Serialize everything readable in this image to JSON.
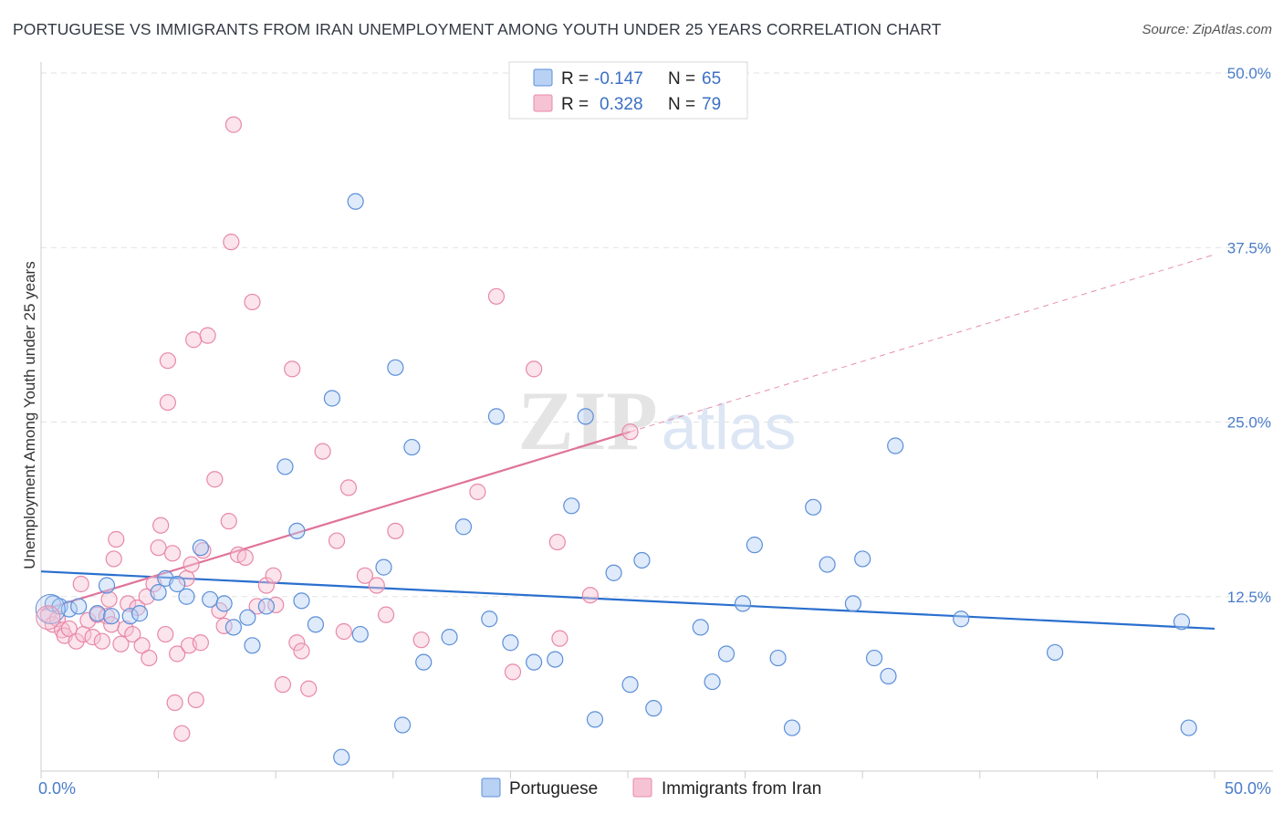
{
  "title": "PORTUGUESE VS IMMIGRANTS FROM IRAN UNEMPLOYMENT AMONG YOUTH UNDER 25 YEARS CORRELATION CHART",
  "source": "Source: ZipAtlas.com",
  "colors": {
    "blue": "#5b8fd9",
    "blue_fill": "#b9d1f3",
    "blue_line": "#2a6fce",
    "pink": "#e888a8",
    "pink_fill": "#f6c3d4",
    "pink_line": "#e0739a",
    "grid": "#e2e2e2",
    "tick_text": "#4a7cc9"
  },
  "chart_data": {
    "type": "scatter",
    "title": "PORTUGUESE VS IMMIGRANTS FROM IRAN UNEMPLOYMENT AMONG YOUTH UNDER 25 YEARS CORRELATION CHART",
    "xlabel": "",
    "ylabel": "Unemployment Among Youth under 25 years",
    "xlim": [
      0,
      50
    ],
    "ylim": [
      0,
      50
    ],
    "x_tick_labels": [
      "0.0%",
      "50.0%"
    ],
    "y_ticks": [
      12.5,
      25.0,
      37.5,
      50.0
    ],
    "y_tick_labels": [
      "12.5%",
      "25.0%",
      "37.5%",
      "50.0%"
    ],
    "watermark": "ZIPatlas",
    "legend": [
      {
        "series": "Portuguese",
        "r_label": "R =",
        "r": "-0.147",
        "n_label": "N =",
        "n": "65"
      },
      {
        "series": "Immigrants from Iran",
        "r_label": "R =",
        "r": "0.328",
        "n_label": "N =",
        "n": "79"
      }
    ],
    "series": [
      {
        "name": "Portuguese",
        "trend": {
          "x": [
            0,
            50
          ],
          "y": [
            14.3,
            10.2
          ],
          "solid_until": 50
        },
        "points": [
          [
            0.5,
            12.0
          ],
          [
            0.8,
            11.8
          ],
          [
            1.2,
            11.6
          ],
          [
            1.6,
            11.8
          ],
          [
            2.4,
            11.3
          ],
          [
            3.0,
            11.1
          ],
          [
            2.8,
            13.3
          ],
          [
            3.8,
            11.1
          ],
          [
            4.2,
            11.3
          ],
          [
            5.0,
            12.8
          ],
          [
            5.3,
            13.8
          ],
          [
            5.8,
            13.4
          ],
          [
            6.2,
            12.5
          ],
          [
            6.8,
            16.0
          ],
          [
            7.2,
            12.3
          ],
          [
            7.8,
            12.0
          ],
          [
            8.2,
            10.3
          ],
          [
            8.8,
            11.0
          ],
          [
            9.0,
            9.0
          ],
          [
            9.6,
            11.8
          ],
          [
            10.4,
            21.8
          ],
          [
            10.9,
            17.2
          ],
          [
            11.1,
            12.2
          ],
          [
            11.7,
            10.5
          ],
          [
            12.4,
            26.7
          ],
          [
            12.8,
            1.0
          ],
          [
            13.4,
            40.8
          ],
          [
            13.6,
            9.8
          ],
          [
            14.6,
            14.6
          ],
          [
            15.1,
            28.9
          ],
          [
            15.4,
            3.3
          ],
          [
            15.8,
            23.2
          ],
          [
            16.3,
            7.8
          ],
          [
            17.4,
            9.6
          ],
          [
            18.0,
            17.5
          ],
          [
            19.1,
            10.9
          ],
          [
            19.4,
            25.4
          ],
          [
            20.0,
            9.2
          ],
          [
            21.0,
            7.8
          ],
          [
            21.9,
            8.0
          ],
          [
            22.6,
            19.0
          ],
          [
            23.2,
            25.4
          ],
          [
            23.6,
            3.7
          ],
          [
            24.4,
            14.2
          ],
          [
            25.1,
            6.2
          ],
          [
            25.6,
            15.1
          ],
          [
            26.1,
            4.5
          ],
          [
            28.1,
            10.3
          ],
          [
            28.6,
            6.4
          ],
          [
            29.2,
            8.4
          ],
          [
            29.9,
            12.0
          ],
          [
            30.4,
            16.2
          ],
          [
            31.4,
            8.1
          ],
          [
            32.0,
            3.1
          ],
          [
            32.9,
            18.9
          ],
          [
            33.5,
            14.8
          ],
          [
            34.6,
            12.0
          ],
          [
            35.0,
            15.2
          ],
          [
            35.5,
            8.1
          ],
          [
            36.1,
            6.8
          ],
          [
            36.4,
            23.3
          ],
          [
            39.2,
            10.9
          ],
          [
            43.2,
            8.5
          ],
          [
            48.6,
            10.7
          ],
          [
            48.9,
            3.1
          ]
        ]
      },
      {
        "name": "Immigrants from Iran",
        "trend": {
          "x": [
            0,
            50
          ],
          "y": [
            11.5,
            37.0
          ],
          "solid_until": 25.1
        },
        "points": [
          [
            0.3,
            11.2
          ],
          [
            0.5,
            10.5
          ],
          [
            0.7,
            10.9
          ],
          [
            0.9,
            10.1
          ],
          [
            1.0,
            9.7
          ],
          [
            1.2,
            10.2
          ],
          [
            1.5,
            9.3
          ],
          [
            1.7,
            13.4
          ],
          [
            1.8,
            9.8
          ],
          [
            2.0,
            10.8
          ],
          [
            2.2,
            9.6
          ],
          [
            2.4,
            11.2
          ],
          [
            2.6,
            9.3
          ],
          [
            2.8,
            11.1
          ],
          [
            2.9,
            12.3
          ],
          [
            3.0,
            10.5
          ],
          [
            3.1,
            15.2
          ],
          [
            3.2,
            16.6
          ],
          [
            3.4,
            9.1
          ],
          [
            3.6,
            10.2
          ],
          [
            3.7,
            12.0
          ],
          [
            3.9,
            9.8
          ],
          [
            4.1,
            11.7
          ],
          [
            4.3,
            9.0
          ],
          [
            4.5,
            12.5
          ],
          [
            4.6,
            8.1
          ],
          [
            4.8,
            13.4
          ],
          [
            5.0,
            16.0
          ],
          [
            5.1,
            17.6
          ],
          [
            5.3,
            9.8
          ],
          [
            5.4,
            29.4
          ],
          [
            5.4,
            26.4
          ],
          [
            5.6,
            15.6
          ],
          [
            5.7,
            4.9
          ],
          [
            5.8,
            8.4
          ],
          [
            6.0,
            2.7
          ],
          [
            6.2,
            13.8
          ],
          [
            6.3,
            9.0
          ],
          [
            6.4,
            14.8
          ],
          [
            6.5,
            30.9
          ],
          [
            6.6,
            5.1
          ],
          [
            6.8,
            9.2
          ],
          [
            6.9,
            15.8
          ],
          [
            7.1,
            31.2
          ],
          [
            7.4,
            20.9
          ],
          [
            7.6,
            11.5
          ],
          [
            7.8,
            10.4
          ],
          [
            8.0,
            17.9
          ],
          [
            8.1,
            37.9
          ],
          [
            8.2,
            46.3
          ],
          [
            8.4,
            15.5
          ],
          [
            8.7,
            15.3
          ],
          [
            9.0,
            33.6
          ],
          [
            9.2,
            11.8
          ],
          [
            9.6,
            13.3
          ],
          [
            9.9,
            14.0
          ],
          [
            10.0,
            11.9
          ],
          [
            10.3,
            6.2
          ],
          [
            10.7,
            28.8
          ],
          [
            10.9,
            9.2
          ],
          [
            11.1,
            8.6
          ],
          [
            11.4,
            5.9
          ],
          [
            12.0,
            22.9
          ],
          [
            12.6,
            16.5
          ],
          [
            12.9,
            10.0
          ],
          [
            13.1,
            20.3
          ],
          [
            13.8,
            14.0
          ],
          [
            14.3,
            13.3
          ],
          [
            14.7,
            11.2
          ],
          [
            15.1,
            17.2
          ],
          [
            16.2,
            9.4
          ],
          [
            18.6,
            20.0
          ],
          [
            19.4,
            34.0
          ],
          [
            20.1,
            7.1
          ],
          [
            21.0,
            28.8
          ],
          [
            22.1,
            9.5
          ],
          [
            23.4,
            12.6
          ],
          [
            25.1,
            24.3
          ],
          [
            22.0,
            16.4
          ]
        ]
      }
    ]
  }
}
